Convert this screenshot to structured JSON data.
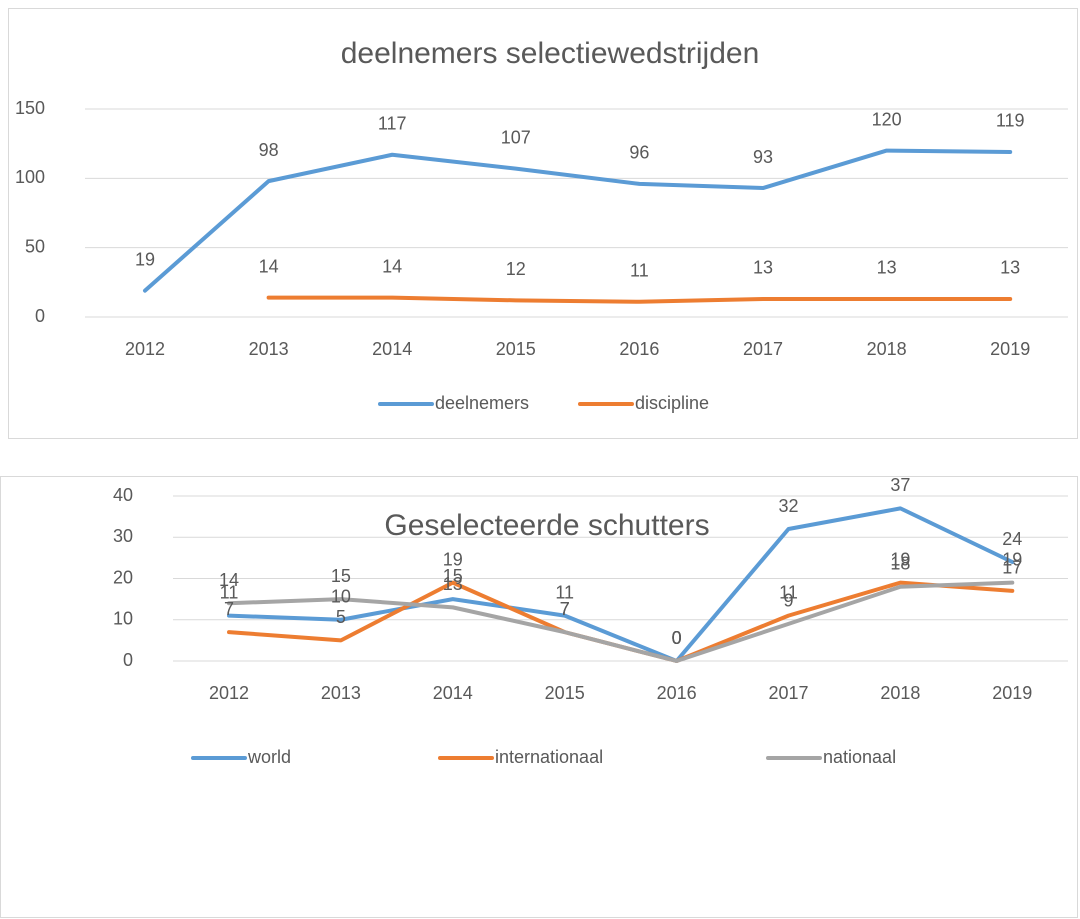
{
  "chart_data": [
    {
      "type": "line",
      "title": "deelnemers selectiewedstrijden",
      "categories": [
        "2012",
        "2013",
        "2014",
        "2015",
        "2016",
        "2017",
        "2018",
        "2019"
      ],
      "series": [
        {
          "name": "deelnemers",
          "color": "#5b9bd5",
          "values": [
            19,
            98,
            117,
            107,
            96,
            93,
            120,
            119
          ]
        },
        {
          "name": "discipline",
          "color": "#ed7d31",
          "values": [
            null,
            14,
            14,
            12,
            11,
            13,
            13,
            13
          ]
        }
      ],
      "ylim": [
        0,
        150
      ],
      "yticks": [
        0,
        50,
        100,
        150
      ],
      "grid": true,
      "legend": "bottom",
      "data_labels": true
    },
    {
      "type": "line",
      "title": "Geselecteerde schutters",
      "categories": [
        "2012",
        "2013",
        "2014",
        "2015",
        "2016",
        "2017",
        "2018",
        "2019"
      ],
      "series": [
        {
          "name": "world",
          "color": "#5b9bd5",
          "values": [
            11,
            10,
            15,
            11,
            0,
            32,
            37,
            24
          ]
        },
        {
          "name": "internationaal",
          "color": "#ed7d31",
          "values": [
            7,
            5,
            19,
            7,
            0,
            11,
            19,
            17
          ]
        },
        {
          "name": "nationaal",
          "color": "#a5a5a5",
          "values": [
            14,
            15,
            13,
            7,
            0,
            9,
            18,
            19
          ]
        }
      ],
      "ylim": [
        0,
        40
      ],
      "yticks": [
        0,
        10,
        20,
        30,
        40
      ],
      "grid": true,
      "legend": "bottom",
      "data_labels": true
    }
  ]
}
